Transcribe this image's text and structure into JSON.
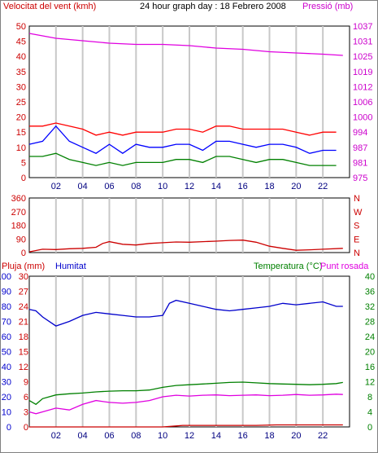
{
  "chart_data": [
    {
      "type": "line",
      "title": "24 hour graph day : 18 Febrero 2008",
      "left_axis_label": "Velocitat del vent (kmh)",
      "right_axis_label": "Pressió (mb)",
      "x_ticks": [
        "02",
        "04",
        "06",
        "08",
        "10",
        "12",
        "14",
        "16",
        "18",
        "20",
        "22"
      ],
      "left_ticks": [
        "0",
        "5",
        "10",
        "15",
        "20",
        "25",
        "30",
        "35",
        "40",
        "45",
        "50"
      ],
      "right_ticks": [
        "975",
        "981",
        "987",
        "994",
        "1000",
        "1006",
        "1012",
        "1019",
        "1025",
        "1031",
        "1037"
      ],
      "ylim_left": [
        0,
        50
      ],
      "ylim_right": [
        975,
        1037
      ],
      "colors": {
        "gust": "#ff0000",
        "average": "#0000ff",
        "minimum": "#008000",
        "pressure": "#e000e0",
        "left_axis": "#cc0000",
        "right_axis": "#cc00cc",
        "x_axis": "#000080"
      },
      "series": [
        {
          "key": "gust",
          "x": [
            0,
            1,
            2,
            3,
            4,
            5,
            6,
            7,
            8,
            9,
            10,
            11,
            12,
            13,
            14,
            15,
            16,
            17,
            18,
            19,
            20,
            21,
            22,
            23
          ],
          "values": [
            17,
            17,
            18,
            17,
            16,
            14,
            15,
            14,
            15,
            15,
            15,
            16,
            16,
            15,
            17,
            17,
            16,
            16,
            16,
            16,
            15,
            14,
            15,
            15
          ]
        },
        {
          "key": "average",
          "x": [
            0,
            1,
            2,
            3,
            4,
            5,
            6,
            7,
            8,
            9,
            10,
            11,
            12,
            13,
            14,
            15,
            16,
            17,
            18,
            19,
            20,
            21,
            22,
            23
          ],
          "values": [
            11,
            12,
            17,
            12,
            10,
            8,
            11,
            8,
            11,
            10,
            10,
            11,
            11,
            9,
            12,
            12,
            11,
            10,
            11,
            11,
            10,
            8,
            9,
            9
          ]
        },
        {
          "key": "minimum",
          "x": [
            0,
            1,
            2,
            3,
            4,
            5,
            6,
            7,
            8,
            9,
            10,
            11,
            12,
            13,
            14,
            15,
            16,
            17,
            18,
            19,
            20,
            21,
            22,
            23
          ],
          "values": [
            7,
            7,
            8,
            6,
            5,
            4,
            5,
            4,
            5,
            5,
            5,
            6,
            6,
            5,
            7,
            7,
            6,
            5,
            6,
            6,
            5,
            4,
            4,
            4
          ]
        },
        {
          "key": "pressure",
          "axis": "right",
          "x": [
            0,
            2,
            4,
            6,
            8,
            10,
            12,
            14,
            16,
            18,
            20,
            22,
            23.5
          ],
          "values": [
            1034,
            1032,
            1031,
            1030,
            1029.5,
            1029.5,
            1029,
            1028,
            1027.5,
            1026.5,
            1026,
            1025.5,
            1025
          ]
        }
      ]
    },
    {
      "type": "line",
      "left_ticks": [
        "0",
        "90",
        "180",
        "270",
        "360"
      ],
      "right_ticks": [
        "N",
        "E",
        "S",
        "W",
        "N"
      ],
      "ylim": [
        0,
        360
      ],
      "x": [
        0,
        1,
        2,
        3,
        4,
        5,
        5.5,
        6,
        7,
        8,
        9,
        10,
        11,
        12,
        13,
        14,
        15,
        16,
        17,
        18,
        19,
        20,
        21,
        22,
        23.5
      ],
      "values": [
        5,
        22,
        20,
        25,
        28,
        35,
        60,
        72,
        55,
        50,
        60,
        65,
        70,
        68,
        72,
        75,
        80,
        82,
        68,
        42,
        28,
        15,
        18,
        22,
        28
      ]
    },
    {
      "type": "line",
      "left_label_rain": "Pluja (mm)",
      "left_label_humidity": "Humitat",
      "right_label_temp": "Temperatura (°C)",
      "right_label_dew": "Punt rosada",
      "rain_ticks": [
        "0",
        "3",
        "6",
        "9",
        "12",
        "15",
        "18",
        "21",
        "24",
        "27",
        "30"
      ],
      "humidity_ticks": [
        "0",
        "10",
        "20",
        "30",
        "40",
        "50",
        "60",
        "70",
        "80",
        "90",
        "100"
      ],
      "right_ticks": [
        "0",
        "4",
        "8",
        "12",
        "16",
        "20",
        "24",
        "28",
        "32",
        "36",
        "40"
      ],
      "ylim_rain": [
        0,
        30
      ],
      "ylim_humidity": [
        0,
        100
      ],
      "ylim_temperature": [
        0,
        40
      ],
      "colors": {
        "rain": "#cc0000",
        "humidity": "#0000cc",
        "temperature": "#008000",
        "dew": "#e000e0"
      },
      "series": [
        {
          "key": "humidity",
          "x": [
            0,
            0.5,
            1,
            2,
            3,
            4,
            5,
            6,
            7,
            8,
            9,
            10,
            10.5,
            11,
            12,
            13,
            14,
            15,
            16,
            17,
            18,
            19,
            20,
            21,
            22,
            23,
            23.5
          ],
          "values": [
            78,
            77,
            73,
            67,
            70,
            74,
            76,
            75,
            74,
            73,
            73,
            74,
            82,
            84,
            82,
            80,
            78,
            77,
            78,
            79,
            80,
            82,
            81,
            82,
            83,
            80,
            80
          ]
        },
        {
          "key": "temperature",
          "x": [
            0,
            0.5,
            1,
            2,
            3,
            4,
            5,
            6,
            7,
            8,
            9,
            10,
            11,
            12,
            13,
            14,
            15,
            16,
            17,
            18,
            19,
            20,
            21,
            22,
            23,
            23.5
          ],
          "values": [
            7,
            6,
            7.5,
            8.5,
            8.8,
            9,
            9.3,
            9.5,
            9.6,
            9.6,
            9.8,
            10.5,
            11,
            11.2,
            11.4,
            11.6,
            11.8,
            11.9,
            11.7,
            11.5,
            11.4,
            11.3,
            11.2,
            11.3,
            11.5,
            11.8
          ]
        },
        {
          "key": "dew",
          "x": [
            0,
            0.5,
            1,
            2,
            3,
            4,
            5,
            6,
            7,
            8,
            9,
            10,
            11,
            12,
            13,
            14,
            15,
            16,
            17,
            18,
            19,
            20,
            21,
            22,
            23,
            23.5
          ],
          "values": [
            4,
            3.5,
            4,
            5,
            4.5,
            6,
            7,
            6.5,
            6.3,
            6.5,
            7,
            8,
            8.4,
            8.2,
            8.4,
            8.5,
            8.3,
            8.4,
            8.5,
            8.3,
            8.4,
            8.6,
            8.4,
            8.5,
            8.7,
            8.6
          ]
        },
        {
          "key": "rain",
          "x": [
            0,
            10,
            11,
            11.5,
            17,
            18.5,
            23.5
          ],
          "values": [
            0,
            0,
            0.2,
            0.3,
            0.3,
            0.4,
            0.4
          ]
        }
      ]
    }
  ]
}
